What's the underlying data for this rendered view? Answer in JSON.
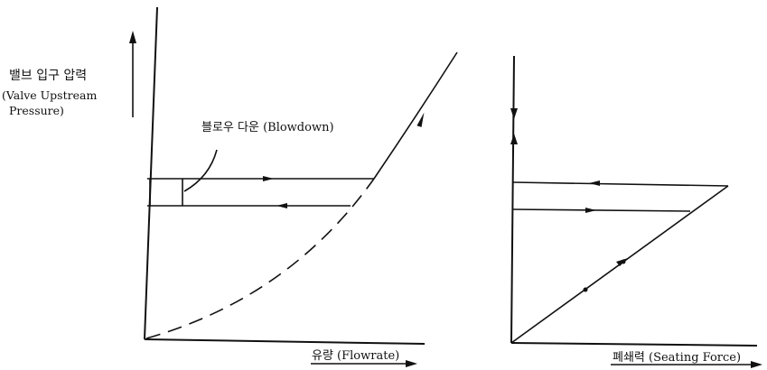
{
  "diagram": {
    "y_label_ko": "밸브 입구 압력",
    "y_label_en_1": "(Valve Upstream",
    "y_label_en_2": "Pressure)",
    "blowdown_label": "블로우 다운 (Blowdown)",
    "flowrate_label": "유량 (Flowrate)",
    "seating_force_label": "폐쇄력 (Seating Force)"
  }
}
